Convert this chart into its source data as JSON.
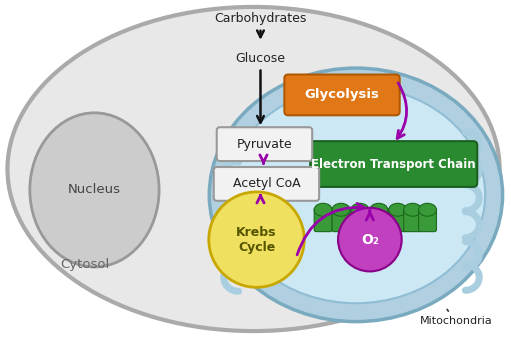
{
  "cell_face": "#e8e8e8",
  "cell_edge": "#aaaaaa",
  "mito_outer_face": "#b0cfe0",
  "mito_outer_edge": "#7aaabf",
  "mito_inner_face": "#cce8f5",
  "mito_inner_edge": "#90bdd4",
  "cristae_color": "#a8cee0",
  "nucleus_face": "#cccccc",
  "nucleus_edge": "#999999",
  "glycolysis_face": "#e07818",
  "glycolysis_edge": "#b05800",
  "etc_face": "#2a8a30",
  "etc_edge": "#1a6020",
  "pyruvate_face": "#f2f2f2",
  "pyruvate_edge": "#999999",
  "acetyl_face": "#f2f2f2",
  "acetyl_edge": "#999999",
  "krebs_face": "#f0e060",
  "krebs_edge": "#c8a800",
  "o2_face": "#c040c0",
  "o2_edge": "#880088",
  "protein_face": "#3a9a3a",
  "protein_edge": "#1a6a1a",
  "arrow_black": "#111111",
  "arrow_purple": "#9900aa",
  "text_dark": "#222222",
  "text_white": "#ffffff",
  "text_nucleus": "#444444",
  "text_cytosol": "#666666",
  "label_carbohydrates": "Carbohydrates",
  "label_glucose": "Glucose",
  "label_glycolysis": "Glycolysis",
  "label_pyruvate": "Pyruvate",
  "label_acetyl": "Acetyl CoA",
  "label_etc": "Electron Transport Chain",
  "label_krebs": "Krebs\nCycle",
  "label_o2": "O₂",
  "label_nucleus": "Nucleus",
  "label_cytosol": "Cytosol",
  "label_mitochondria": "Mitochondria"
}
